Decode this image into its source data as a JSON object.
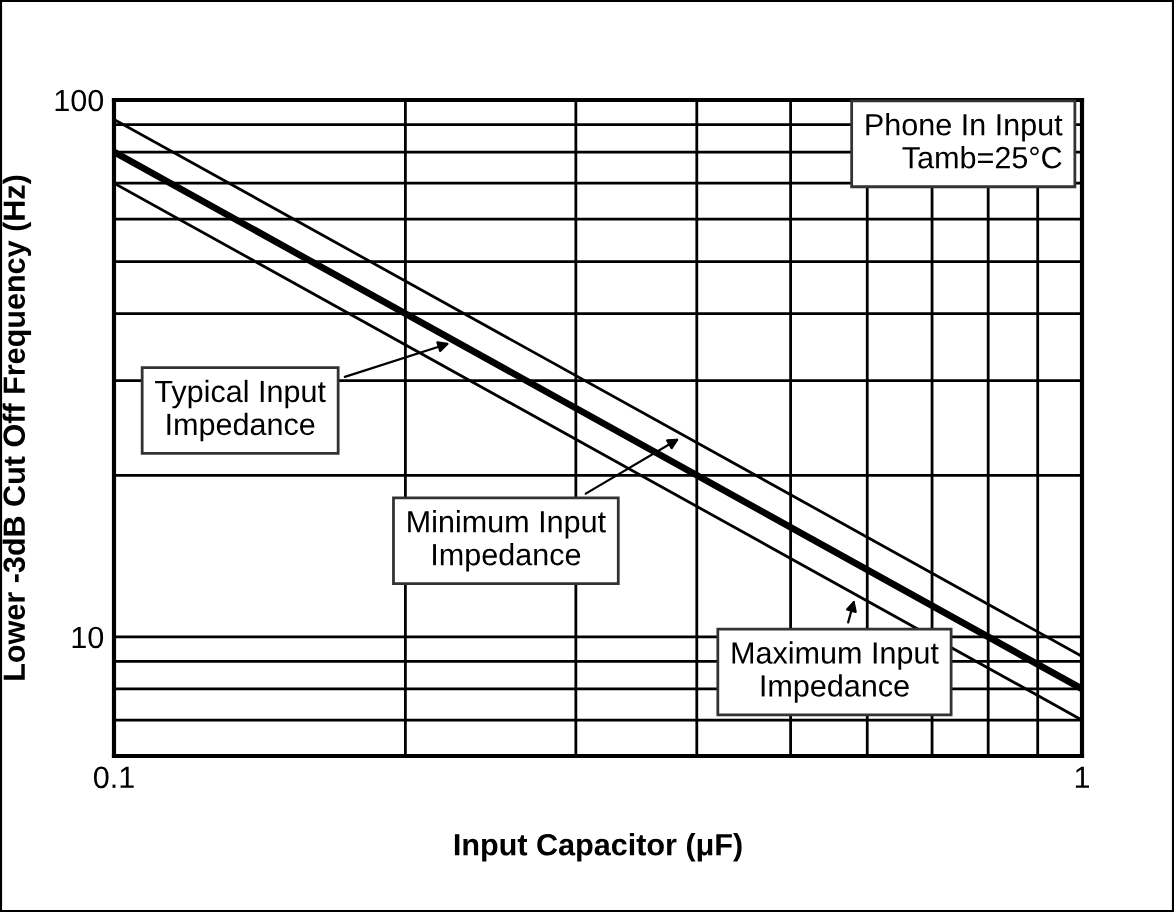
{
  "chart_data": {
    "type": "line",
    "xlabel": "Input Capacitor (μF)",
    "ylabel": "Lower -3dB Cut Off Frequency (Hz)",
    "x": [
      0.1,
      1
    ],
    "series": [
      {
        "color": "#000000",
        "values": [
          92,
          9.2
        ]
      },
      {
        "color": "#000000",
        "values": [
          80,
          8
        ]
      },
      {
        "color": "#000000",
        "values": [
          70,
          7
        ]
      }
    ],
    "log": "xy",
    "xlim": [
      0.1,
      1
    ],
    "ylim": [
      6,
      100
    ],
    "xticks": [
      0.1,
      {
        "value": 0.2,
        "label": null
      },
      {
        "value": 0.3,
        "label": null
      },
      {
        "value": 0.4,
        "label": null
      },
      {
        "value": 0.5,
        "label": null
      },
      {
        "value": 0.6,
        "label": null
      },
      {
        "value": 0.7,
        "label": null
      },
      {
        "value": 0.8,
        "label": null
      },
      {
        "value": 0.9,
        "label": null
      },
      1
    ],
    "yticks": [
      {
        "value": 7,
        "label": null
      },
      {
        "value": 8,
        "label": null
      },
      {
        "value": 9,
        "label": null
      },
      10,
      {
        "value": 20,
        "label": null
      },
      {
        "value": 30,
        "label": null
      },
      {
        "value": 40,
        "label": null
      },
      {
        "value": 50,
        "label": null
      },
      {
        "value": 60,
        "label": null
      },
      {
        "value": 70,
        "label": null
      },
      {
        "value": 80,
        "label": null
      },
      {
        "value": 90,
        "label": null
      },
      100
    ],
    "grid": true,
    "marker": "none",
    "line_style": "solid",
    "annotations": [
      "Phone In Input\nTamb=25°C",
      {
        "text": "Typical Input\nImpedance",
        "x": 0.225,
        "y": 35.5
      },
      {
        "text": "Minimum Input\nImpedance",
        "x": 0.388,
        "y": 23.7
      },
      {
        "text": "Maximum Input\nImpedance",
        "x": 0.584,
        "y": 12.0
      }
    ]
  }
}
